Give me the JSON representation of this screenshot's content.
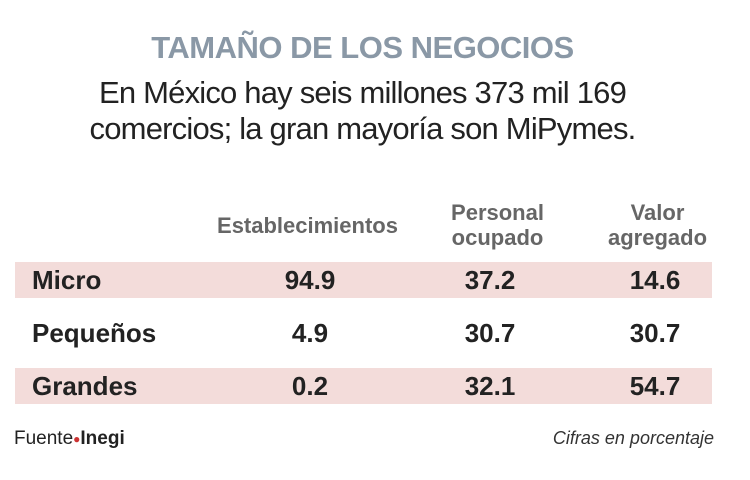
{
  "title": "TAMAÑO DE LOS NEGOCIOS",
  "subtitle_line1": "En México hay seis millones 373 mil 169",
  "subtitle_line2": "comercios; la gran mayoría son MiPymes.",
  "columns": [
    "Establecimientos",
    "Personal ocupado",
    "Valor agregado"
  ],
  "headers": {
    "c1": "Establecimientos",
    "c2a": "Personal",
    "c2b": "ocupado",
    "c3a": "Valor",
    "c3b": "agregado"
  },
  "rows": [
    {
      "label": "Micro",
      "values": [
        "94.9",
        "37.2",
        "14.6"
      ]
    },
    {
      "label": "Pequeños",
      "values": [
        "4.9",
        "30.7",
        "30.7"
      ]
    },
    {
      "label": "Grandes",
      "values": [
        "0.2",
        "32.1",
        "54.7"
      ]
    }
  ],
  "source_label": "Fuente",
  "source_name": "Inegi",
  "note": "Cifras en porcentaje",
  "colors": {
    "band": "#f3dcda",
    "title": "#8a98a6"
  },
  "chart_data": {
    "type": "table",
    "title": "TAMAÑO DE LOS NEGOCIOS",
    "columns": [
      "Establecimientos",
      "Personal ocupado",
      "Valor agregado"
    ],
    "rows": [
      "Micro",
      "Pequeños",
      "Grandes"
    ],
    "values": [
      [
        94.9,
        37.2,
        14.6
      ],
      [
        4.9,
        30.7,
        30.7
      ],
      [
        0.2,
        32.1,
        54.7
      ]
    ],
    "unit": "%"
  }
}
